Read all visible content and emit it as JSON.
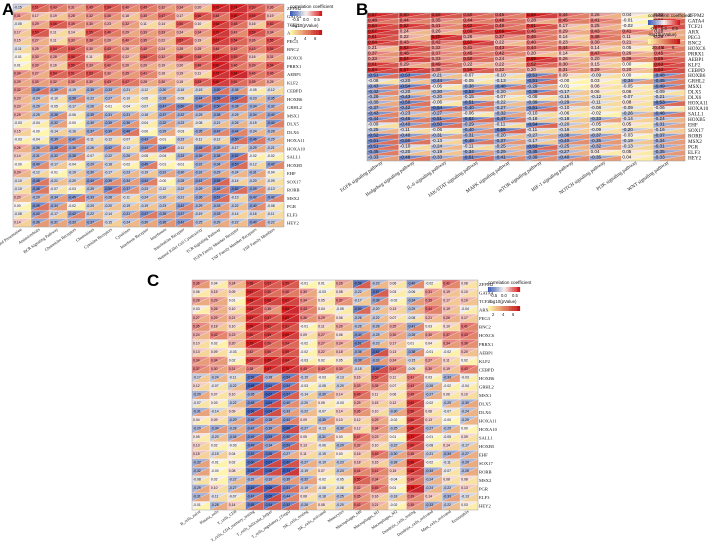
{
  "panels": [
    {
      "letter": "A"
    },
    {
      "letter": "B"
    },
    {
      "letter": "C"
    }
  ],
  "legend": {
    "title": "correlation coefficient",
    "subtitle": "-log10(pValue)",
    "corr_ticks": [
      "-0.5",
      "0.0",
      "0.5"
    ],
    "p_ticks": [
      "2",
      "4",
      "6"
    ],
    "colors": {
      "neg": "#3b5bb5",
      "mid": "#f7f3f0",
      "pos": "#d7191c",
      "plow": "#fff6a8",
      "phigh": "#c4151b"
    }
  },
  "chart_data": [
    {
      "type": "heatmap",
      "panel": "A",
      "genes": [
        "ZFPM2",
        "GATA4",
        "TCF21",
        "ARX",
        "PEG3",
        "BNC2",
        "HOXC6",
        "PRRX1",
        "AEBP1",
        "KLF2",
        "CEBPD",
        "HOXB6",
        "GRHL2",
        "MSX1",
        "DLX5",
        "DLX6",
        "HOXA11",
        "HOXA10",
        "SALL1",
        "HOXB5",
        "EHF",
        "SOX17",
        "RORB",
        "MSX2",
        "PGR",
        "ELF3",
        "HEY2"
      ],
      "columns": [
        "Antigen Processing and Presentation",
        "Antimicrobials",
        "BCR Signaling Pathway",
        "Chemokine Receptors",
        "Chemokines",
        "Cytokine Receptors",
        "Cytokines",
        "Interferon Receptor",
        "Interferons",
        "Interleukins Receptor",
        "Natural Killer Cell Cytotoxicity",
        "TCR Signaling Pathway",
        "TGFb Family Member Receptor",
        "TNF Family Member Receptors",
        "TNF Family Members"
      ]
    },
    {
      "type": "heatmap",
      "panel": "B",
      "genes": [
        "ZFPM2",
        "GATA4",
        "TCF21",
        "ARX",
        "PEG3",
        "BNC2",
        "HOXC6",
        "PRRX1",
        "AEBP1",
        "KLF2",
        "CEBPD",
        "HOXB6",
        "GRHL2",
        "MSX1",
        "DLX5",
        "DLX6",
        "HOXA11",
        "HOXA10",
        "SALL1",
        "HOXB5",
        "EHF",
        "SOX17",
        "RORB",
        "MSX2",
        "PGR",
        "ELF3",
        "HEY2"
      ],
      "columns": [
        "EGFR signaling pathway",
        "Hedgehog signaling pathway",
        "IL-6 signaling pathway",
        "JAK/STAT signaling pathway",
        "MAPK signaling pathway",
        "mTOR signaling pathway",
        "HIF-1 signaling pathway",
        "NOTCH signaling pathway",
        "PI3K signaling pathway",
        "WNT signaling pathway"
      ]
    },
    {
      "type": "heatmap",
      "panel": "C",
      "genes": [
        "ZFPM2",
        "GATA4",
        "TCF21",
        "ARX",
        "PEG3",
        "BNC2",
        "HOXC6",
        "PRRX1",
        "AEBP1",
        "KLF2",
        "CEBPD",
        "HOXB6",
        "GRHL2",
        "MSX1",
        "DLX5",
        "DLX6",
        "HOXA11",
        "HOXA10",
        "SALL1",
        "HOXB5",
        "EHF",
        "SOX17",
        "RORB",
        "MSX2",
        "PGR",
        "ELF3",
        "HEY2"
      ],
      "columns": [
        "B_cells_naive",
        "Plasma_cells",
        "T_cells_CD8",
        "T_cells_CD4_memory_resting",
        "T_cells_follicular_helper",
        "T_cells_regulatory_(Tregs)",
        "NK_cells_resting",
        "NK_cells_activated",
        "Monocytes",
        "Macrophages_M0",
        "Macrophages_M1",
        "Macrophages_M2",
        "Dendritic_cells_resting",
        "Dendritic_cells_activated",
        "Mast_cells_activated",
        "Eosinophils"
      ]
    }
  ]
}
